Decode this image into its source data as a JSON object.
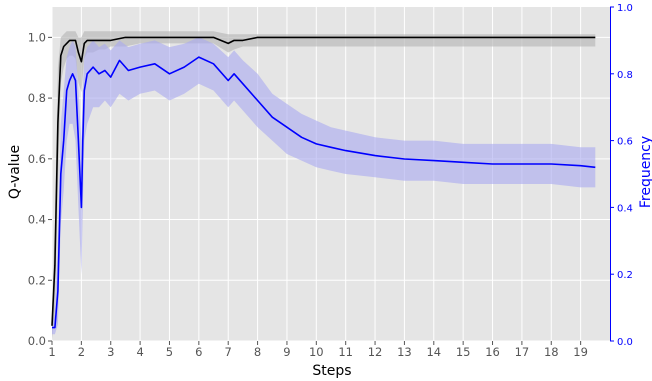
{
  "chart_data": {
    "type": "line",
    "xlabel": "Steps",
    "ylabel": "Q-value",
    "y2label": "Frequency",
    "xlim": [
      1,
      20
    ],
    "ylim": [
      0,
      1.1
    ],
    "y2lim": [
      0,
      1.0
    ],
    "x_ticks": [
      1,
      2,
      3,
      4,
      5,
      6,
      7,
      8,
      9,
      10,
      11,
      12,
      13,
      14,
      15,
      16,
      17,
      18,
      19
    ],
    "y_ticks": [
      0.0,
      0.2,
      0.4,
      0.6,
      0.8,
      1.0
    ],
    "y2_ticks": [
      0.0,
      0.2,
      0.4,
      0.6,
      0.8,
      1.0
    ],
    "grid": true,
    "colors": {
      "background": "#e5e5e5",
      "grid": "#ffffff",
      "q_line": "#000000",
      "q_band": "#bbbbbb",
      "freq_line": "#0000ff",
      "freq_band": "#a8a8f0",
      "right_axis": "#0000ff"
    },
    "series": [
      {
        "axis": "left",
        "color": "#000000",
        "x": [
          1.0,
          1.1,
          1.2,
          1.3,
          1.4,
          1.5,
          1.6,
          1.7,
          1.8,
          1.9,
          2.0,
          2.1,
          2.2,
          2.4,
          2.6,
          2.8,
          3.0,
          3.5,
          4.0,
          5.0,
          6.0,
          6.5,
          7.0,
          7.2,
          7.5,
          8.0,
          9.0,
          10.0,
          11.0,
          12.0,
          13.0,
          14.0,
          15.0,
          16.0,
          17.0,
          18.0,
          19.0,
          19.5
        ],
        "y": [
          0.05,
          0.25,
          0.72,
          0.94,
          0.97,
          0.98,
          0.99,
          0.99,
          0.99,
          0.95,
          0.92,
          0.98,
          0.99,
          0.99,
          0.99,
          0.99,
          0.99,
          1.0,
          1.0,
          1.0,
          1.0,
          1.0,
          0.98,
          0.99,
          0.99,
          1.0,
          1.0,
          1.0,
          1.0,
          1.0,
          1.0,
          1.0,
          1.0,
          1.0,
          1.0,
          1.0,
          1.0,
          1.0
        ],
        "band_low": [
          0.0,
          0.1,
          0.5,
          0.85,
          0.9,
          0.93,
          0.94,
          0.94,
          0.93,
          0.85,
          0.82,
          0.93,
          0.95,
          0.95,
          0.96,
          0.96,
          0.97,
          0.97,
          0.98,
          0.98,
          0.98,
          0.98,
          0.95,
          0.96,
          0.97,
          0.97,
          0.97,
          0.97,
          0.97,
          0.97,
          0.97,
          0.97,
          0.97,
          0.97,
          0.97,
          0.97,
          0.97,
          0.97
        ],
        "band_high": [
          0.1,
          0.4,
          0.9,
          1.0,
          1.01,
          1.02,
          1.02,
          1.02,
          1.02,
          1.0,
          1.0,
          1.02,
          1.02,
          1.02,
          1.02,
          1.02,
          1.02,
          1.02,
          1.02,
          1.02,
          1.02,
          1.02,
          1.01,
          1.01,
          1.01,
          1.01,
          1.01,
          1.01,
          1.01,
          1.01,
          1.01,
          1.01,
          1.01,
          1.01,
          1.01,
          1.01,
          1.01,
          1.01
        ]
      },
      {
        "axis": "right",
        "color": "#0000ff",
        "x": [
          1.0,
          1.1,
          1.2,
          1.3,
          1.4,
          1.5,
          1.6,
          1.7,
          1.8,
          1.9,
          2.0,
          2.05,
          2.1,
          2.2,
          2.4,
          2.6,
          2.8,
          3.0,
          3.3,
          3.6,
          4.0,
          4.5,
          5.0,
          5.5,
          6.0,
          6.5,
          7.0,
          7.2,
          7.5,
          8.0,
          8.5,
          9.0,
          9.5,
          10.0,
          10.5,
          11.0,
          12.0,
          13.0,
          14.0,
          15.0,
          16.0,
          17.0,
          18.0,
          19.0,
          19.5
        ],
        "y": [
          0.04,
          0.04,
          0.15,
          0.5,
          0.6,
          0.75,
          0.78,
          0.8,
          0.78,
          0.6,
          0.4,
          0.6,
          0.75,
          0.8,
          0.82,
          0.8,
          0.81,
          0.79,
          0.84,
          0.81,
          0.82,
          0.83,
          0.8,
          0.82,
          0.85,
          0.83,
          0.78,
          0.8,
          0.77,
          0.72,
          0.67,
          0.64,
          0.61,
          0.59,
          0.58,
          0.57,
          0.555,
          0.545,
          0.54,
          0.535,
          0.53,
          0.53,
          0.53,
          0.525,
          0.52
        ],
        "band_low": [
          0.02,
          0.02,
          0.05,
          0.35,
          0.45,
          0.6,
          0.65,
          0.65,
          0.6,
          0.4,
          0.2,
          0.4,
          0.6,
          0.65,
          0.7,
          0.7,
          0.72,
          0.7,
          0.74,
          0.72,
          0.74,
          0.75,
          0.72,
          0.74,
          0.77,
          0.75,
          0.7,
          0.72,
          0.69,
          0.64,
          0.6,
          0.56,
          0.54,
          0.52,
          0.51,
          0.5,
          0.49,
          0.48,
          0.48,
          0.47,
          0.47,
          0.47,
          0.47,
          0.46,
          0.46
        ],
        "band_high": [
          0.06,
          0.08,
          0.3,
          0.65,
          0.75,
          0.85,
          0.88,
          0.9,
          0.88,
          0.75,
          0.6,
          0.75,
          0.85,
          0.88,
          0.9,
          0.88,
          0.89,
          0.87,
          0.9,
          0.88,
          0.89,
          0.9,
          0.88,
          0.89,
          0.91,
          0.89,
          0.85,
          0.87,
          0.84,
          0.8,
          0.74,
          0.71,
          0.68,
          0.66,
          0.64,
          0.63,
          0.61,
          0.6,
          0.6,
          0.59,
          0.59,
          0.59,
          0.59,
          0.58,
          0.58
        ]
      }
    ]
  }
}
